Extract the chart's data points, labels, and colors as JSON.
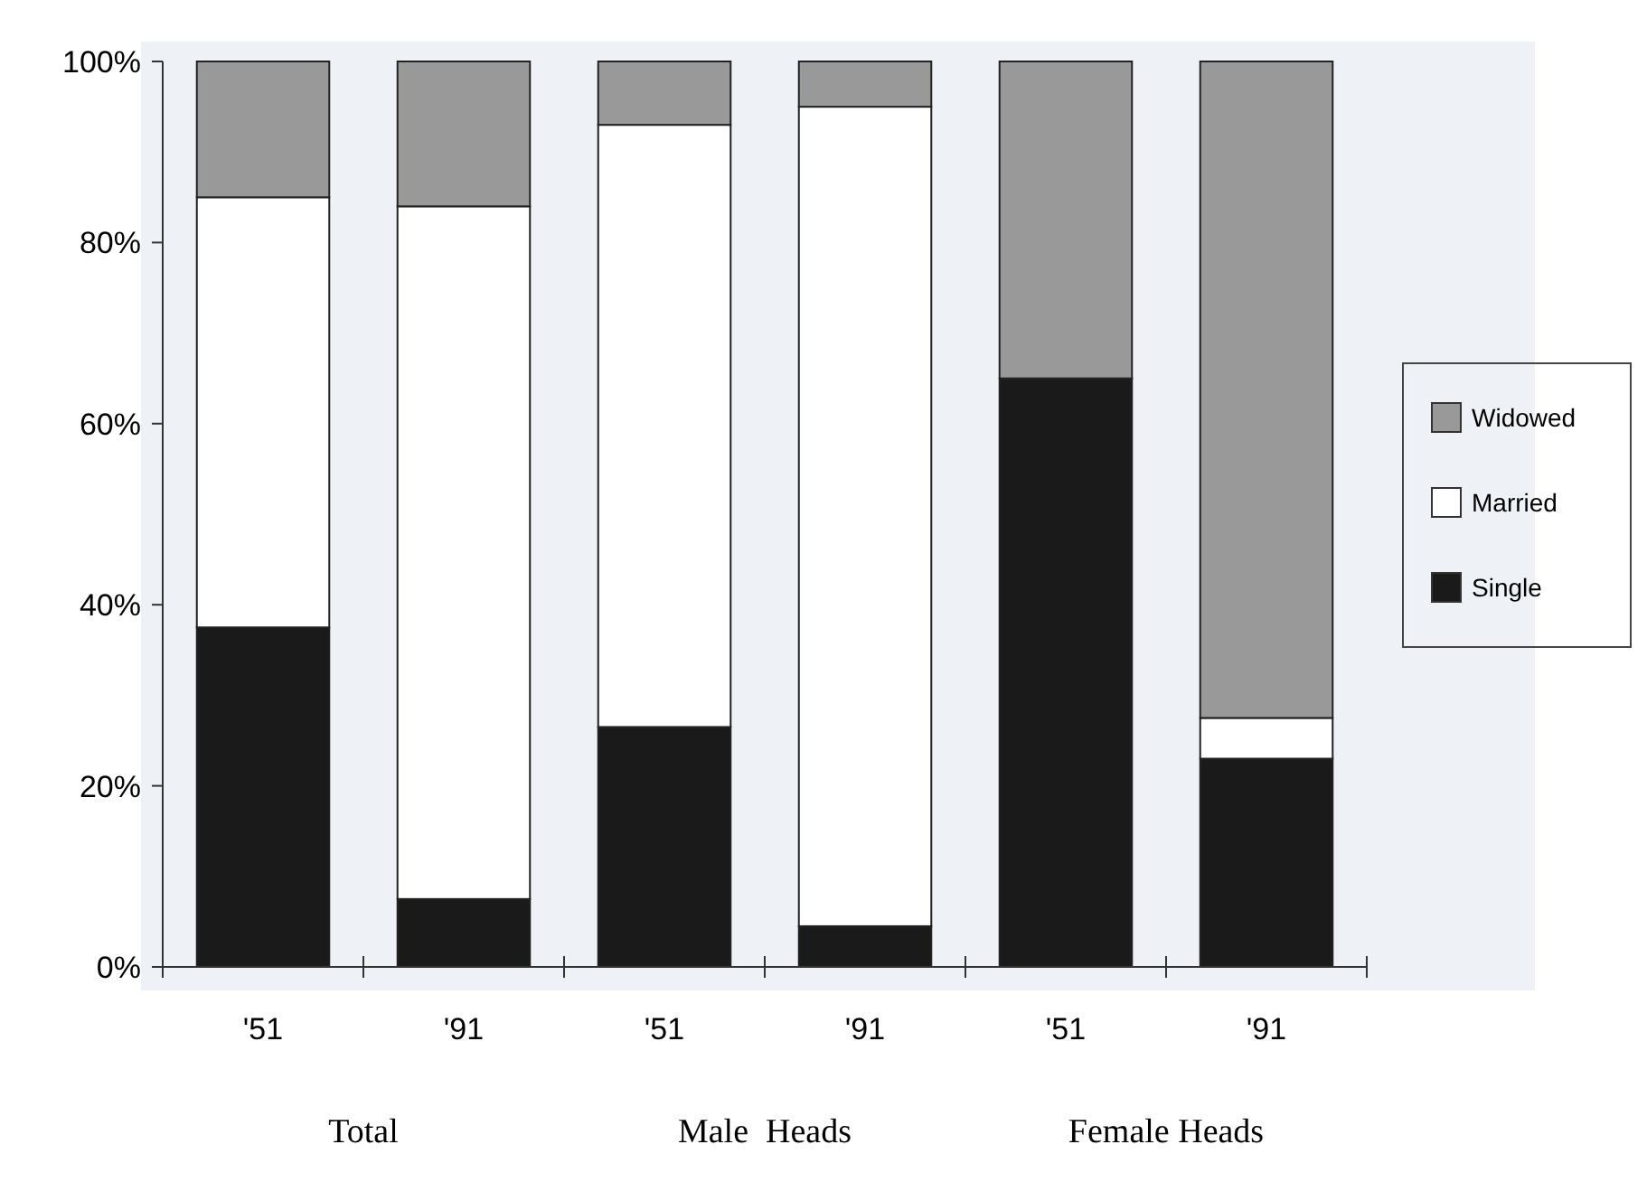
{
  "chart_data": {
    "type": "bar",
    "stacked": true,
    "categories": [
      "'51",
      "'91",
      "'51",
      "'91",
      "'51",
      "'91"
    ],
    "series": [
      {
        "name": "Single",
        "color": "#1a1a1a",
        "values": [
          37.5,
          7.5,
          26.5,
          4.5,
          65,
          23
        ]
      },
      {
        "name": "Married",
        "color": "#ffffff",
        "values": [
          47.5,
          76.5,
          66.5,
          90.5,
          0,
          4.5
        ]
      },
      {
        "name": "Widowed",
        "color": "#999999",
        "values": [
          15,
          16,
          7,
          5,
          35,
          72.5
        ]
      }
    ],
    "ylim": [
      0,
      100
    ],
    "yticks": [
      {
        "value": 0,
        "label": "0%"
      },
      {
        "value": 20,
        "label": "20%"
      },
      {
        "value": 40,
        "label": "40%"
      },
      {
        "value": 60,
        "label": "60%"
      },
      {
        "value": 80,
        "label": "80%"
      },
      {
        "value": 100,
        "label": "100%"
      }
    ],
    "legend": "right",
    "grid": false,
    "annotations": [
      "Total",
      "Male  Heads",
      "Female Heads"
    ]
  }
}
